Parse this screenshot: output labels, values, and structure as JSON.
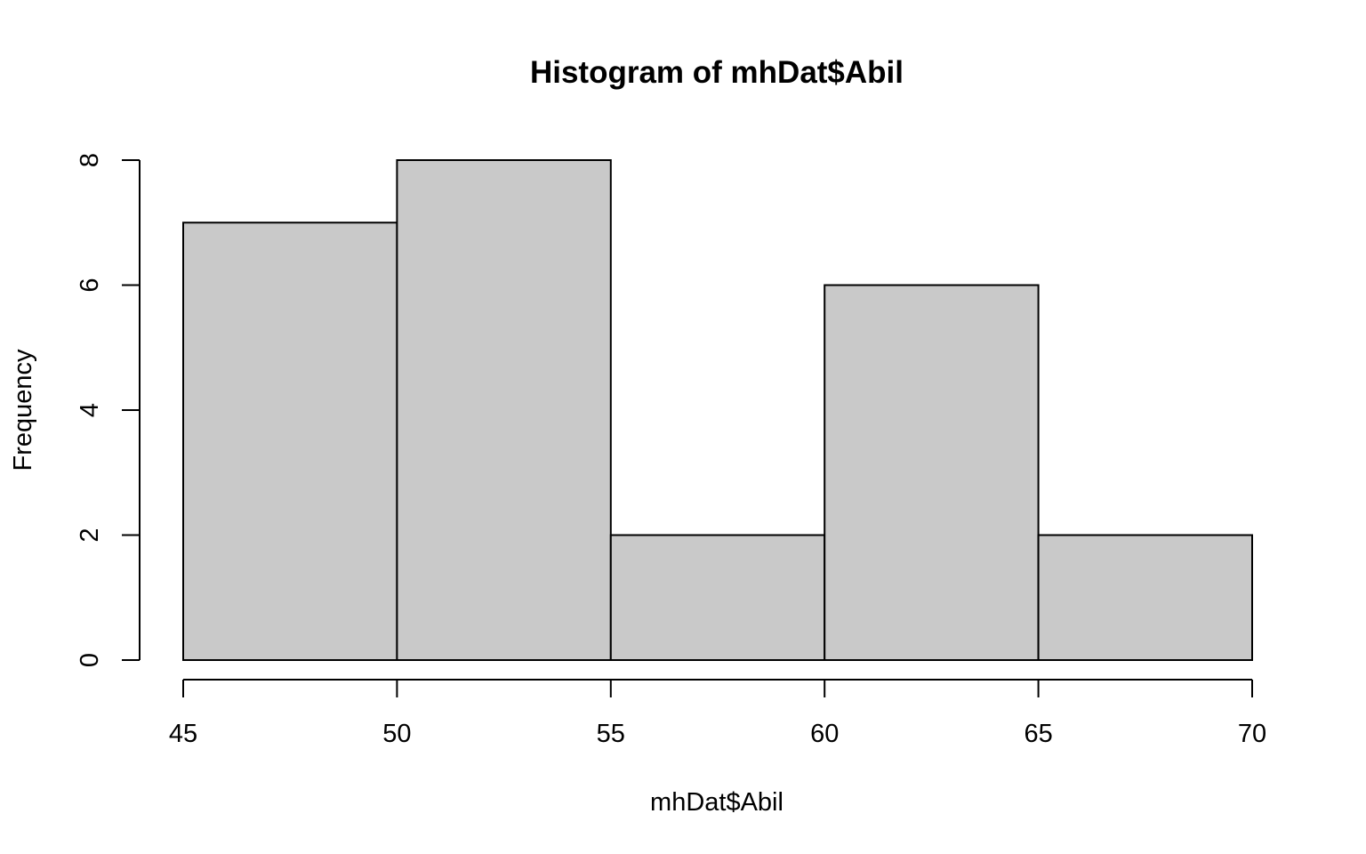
{
  "chart_data": {
    "type": "bar",
    "title": "Histogram of mhDat$Abil",
    "xlabel": "mhDat$Abil",
    "ylabel": "Frequency",
    "bins": [
      {
        "start": 45,
        "end": 50,
        "count": 7
      },
      {
        "start": 50,
        "end": 55,
        "count": 8
      },
      {
        "start": 55,
        "end": 60,
        "count": 2
      },
      {
        "start": 60,
        "end": 65,
        "count": 6
      },
      {
        "start": 65,
        "end": 70,
        "count": 2
      }
    ],
    "x_ticks": [
      45,
      50,
      55,
      60,
      65,
      70
    ],
    "y_ticks": [
      0,
      2,
      4,
      6,
      8
    ],
    "xlim": [
      45,
      70
    ],
    "ylim": [
      0,
      8
    ],
    "grid": false,
    "bar_fill": "#c9c9c9",
    "bar_stroke": "#000000"
  }
}
